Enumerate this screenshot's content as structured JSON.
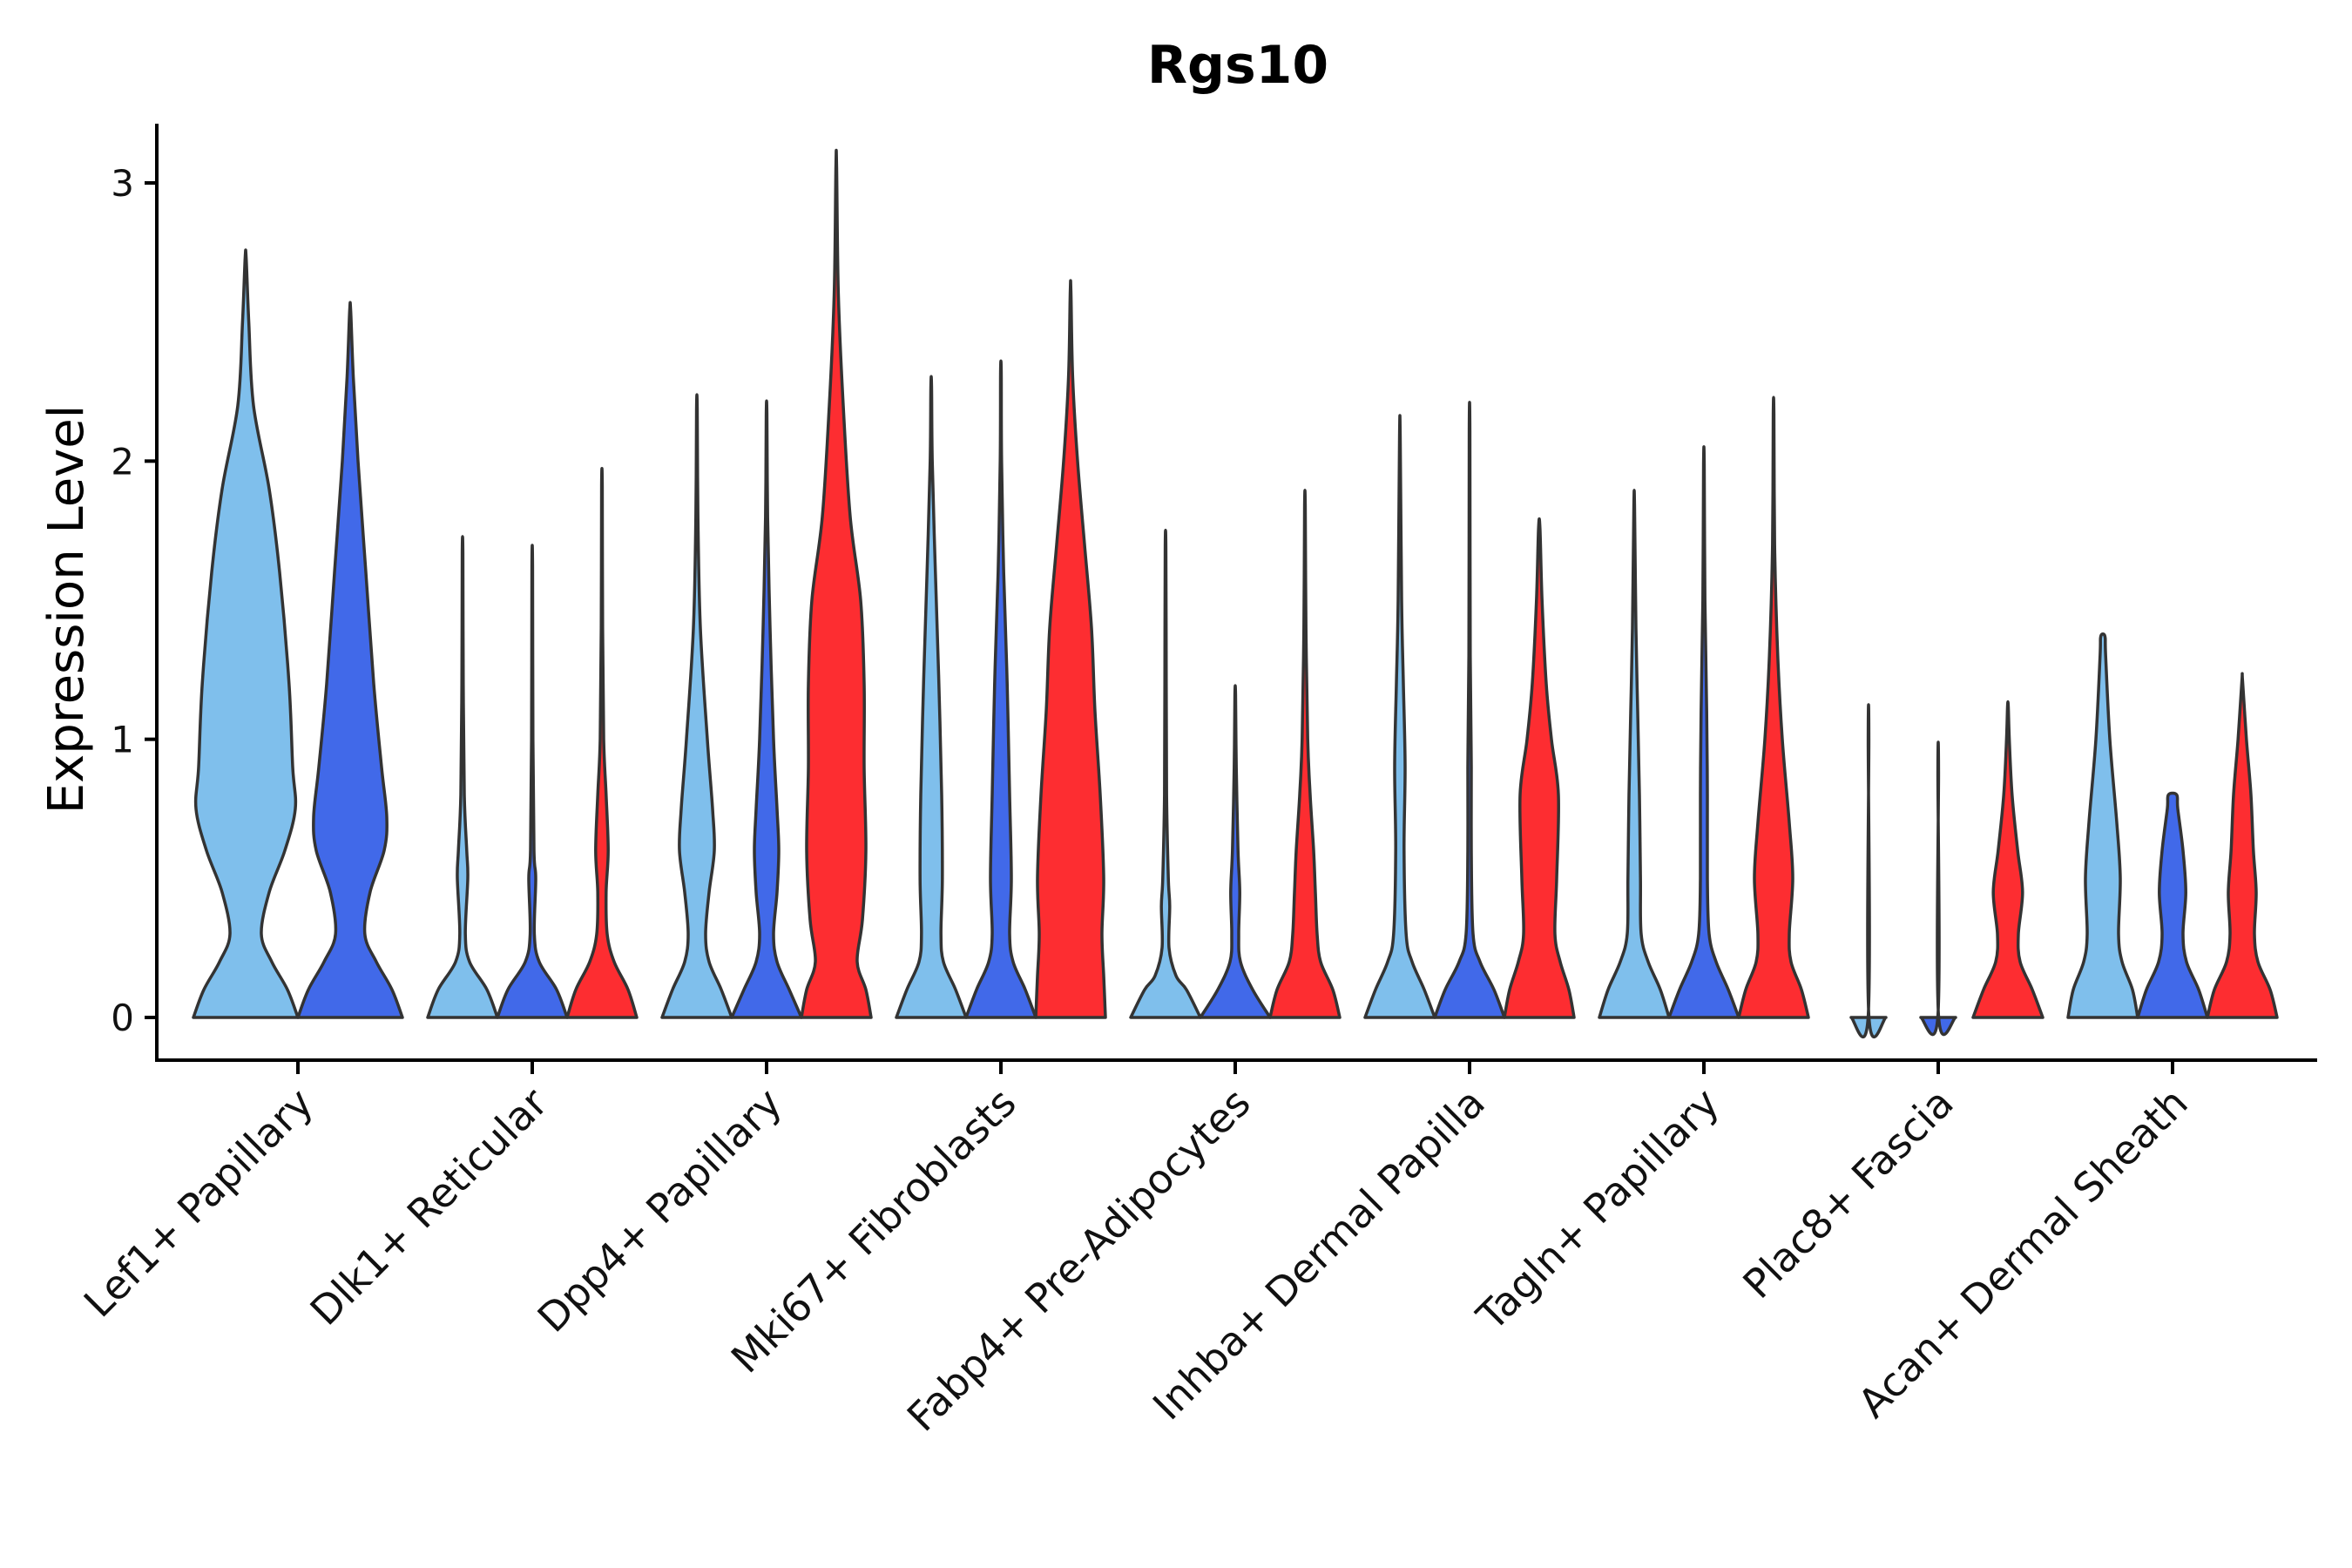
{
  "chart_data": {
    "type": "violin",
    "title": "Rgs10",
    "xlabel": "",
    "ylabel": "Expression Level",
    "ylim": [
      -0.15,
      3.2
    ],
    "yticks": [
      0,
      1,
      2,
      3
    ],
    "grid": false,
    "legend": "none",
    "series_colors": [
      "#7fbfec",
      "#4169e9",
      "#fd2d31"
    ],
    "categories": [
      "Lef1+ Papillary",
      "Dlk1+ Reticular",
      "Dpp4+ Papillary",
      "Mki67+ Fibroblasts",
      "Fabp4+ Pre-Adipocytes",
      "Inhba+ Dermal Papilla",
      "Tagln+ Papillary",
      "Plac8+ Fascia",
      "Acan+ Dermal Sheath"
    ],
    "violins": [
      {
        "category": "Lef1+ Papillary",
        "group": 1,
        "max": 2.73,
        "profile": [
          [
            0,
            1.0
          ],
          [
            0.1,
            0.8
          ],
          [
            0.2,
            0.5
          ],
          [
            0.3,
            0.3
          ],
          [
            0.45,
            0.45
          ],
          [
            0.6,
            0.75
          ],
          [
            0.75,
            0.95
          ],
          [
            0.9,
            0.9
          ],
          [
            1.2,
            0.83
          ],
          [
            1.6,
            0.65
          ],
          [
            1.9,
            0.45
          ],
          [
            2.2,
            0.15
          ],
          [
            2.5,
            0.06
          ],
          [
            2.73,
            0.01
          ]
        ]
      },
      {
        "category": "Lef1+ Papillary",
        "group": 2,
        "max": 2.54,
        "profile": [
          [
            0,
            1.0
          ],
          [
            0.1,
            0.8
          ],
          [
            0.2,
            0.5
          ],
          [
            0.3,
            0.28
          ],
          [
            0.45,
            0.38
          ],
          [
            0.6,
            0.65
          ],
          [
            0.72,
            0.7
          ],
          [
            0.9,
            0.6
          ],
          [
            1.2,
            0.45
          ],
          [
            1.6,
            0.3
          ],
          [
            2.0,
            0.15
          ],
          [
            2.3,
            0.06
          ],
          [
            2.54,
            0.01
          ]
        ]
      },
      {
        "category": "Dlk1+ Reticular",
        "group": 1,
        "max": 1.67,
        "profile": [
          [
            0,
            1.0
          ],
          [
            0.1,
            0.7
          ],
          [
            0.2,
            0.2
          ],
          [
            0.3,
            0.08
          ],
          [
            0.5,
            0.15
          ],
          [
            0.6,
            0.12
          ],
          [
            0.8,
            0.05
          ],
          [
            1.2,
            0.02
          ],
          [
            1.67,
            0.01
          ]
        ]
      },
      {
        "category": "Dlk1+ Reticular",
        "group": 2,
        "max": 1.62,
        "profile": [
          [
            0,
            1.0
          ],
          [
            0.1,
            0.7
          ],
          [
            0.2,
            0.2
          ],
          [
            0.3,
            0.06
          ],
          [
            0.5,
            0.1
          ],
          [
            0.6,
            0.05
          ],
          [
            1.0,
            0.02
          ],
          [
            1.62,
            0.01
          ]
        ]
      },
      {
        "category": "Dlk1+ Reticular",
        "group": 3,
        "max": 1.91,
        "profile": [
          [
            0,
            1.0
          ],
          [
            0.1,
            0.75
          ],
          [
            0.2,
            0.35
          ],
          [
            0.3,
            0.15
          ],
          [
            0.45,
            0.12
          ],
          [
            0.6,
            0.18
          ],
          [
            0.8,
            0.12
          ],
          [
            1.0,
            0.05
          ],
          [
            1.4,
            0.02
          ],
          [
            1.91,
            0.01
          ]
        ]
      },
      {
        "category": "Dpp4+ Papillary",
        "group": 1,
        "max": 2.19,
        "profile": [
          [
            0,
            1.0
          ],
          [
            0.1,
            0.7
          ],
          [
            0.2,
            0.35
          ],
          [
            0.3,
            0.25
          ],
          [
            0.45,
            0.35
          ],
          [
            0.6,
            0.5
          ],
          [
            0.75,
            0.45
          ],
          [
            1.0,
            0.3
          ],
          [
            1.4,
            0.1
          ],
          [
            1.8,
            0.03
          ],
          [
            2.19,
            0.01
          ]
        ]
      },
      {
        "category": "Dpp4+ Papillary",
        "group": 2,
        "max": 2.17,
        "profile": [
          [
            0,
            1.0
          ],
          [
            0.1,
            0.65
          ],
          [
            0.2,
            0.3
          ],
          [
            0.3,
            0.2
          ],
          [
            0.45,
            0.3
          ],
          [
            0.6,
            0.35
          ],
          [
            0.75,
            0.3
          ],
          [
            1.0,
            0.2
          ],
          [
            1.4,
            0.1
          ],
          [
            1.8,
            0.03
          ],
          [
            2.17,
            0.01
          ]
        ]
      },
      {
        "category": "Dpp4+ Papillary",
        "group": 3,
        "max": 3.06,
        "profile": [
          [
            0,
            1.0
          ],
          [
            0.1,
            0.85
          ],
          [
            0.2,
            0.6
          ],
          [
            0.35,
            0.75
          ],
          [
            0.6,
            0.85
          ],
          [
            0.9,
            0.8
          ],
          [
            1.2,
            0.8
          ],
          [
            1.5,
            0.7
          ],
          [
            1.8,
            0.4
          ],
          [
            2.2,
            0.2
          ],
          [
            2.6,
            0.06
          ],
          [
            3.06,
            0.01
          ]
        ]
      },
      {
        "category": "Mki67+ Fibroblasts",
        "group": 1,
        "max": 2.27,
        "profile": [
          [
            0,
            1.0
          ],
          [
            0.1,
            0.7
          ],
          [
            0.2,
            0.35
          ],
          [
            0.3,
            0.28
          ],
          [
            0.5,
            0.32
          ],
          [
            0.8,
            0.3
          ],
          [
            1.2,
            0.22
          ],
          [
            1.6,
            0.12
          ],
          [
            2.0,
            0.03
          ],
          [
            2.27,
            0.01
          ]
        ]
      },
      {
        "category": "Mki67+ Fibroblasts",
        "group": 2,
        "max": 2.32,
        "profile": [
          [
            0,
            1.0
          ],
          [
            0.1,
            0.7
          ],
          [
            0.2,
            0.35
          ],
          [
            0.3,
            0.25
          ],
          [
            0.5,
            0.3
          ],
          [
            0.8,
            0.25
          ],
          [
            1.2,
            0.18
          ],
          [
            1.6,
            0.08
          ],
          [
            2.0,
            0.02
          ],
          [
            2.32,
            0.01
          ]
        ]
      },
      {
        "category": "Mki67+ Fibroblasts",
        "group": 3,
        "max": 2.61,
        "profile": [
          [
            0,
            1.0
          ],
          [
            0.15,
            0.95
          ],
          [
            0.3,
            0.9
          ],
          [
            0.5,
            0.95
          ],
          [
            0.8,
            0.85
          ],
          [
            1.1,
            0.7
          ],
          [
            1.4,
            0.6
          ],
          [
            1.7,
            0.4
          ],
          [
            2.0,
            0.2
          ],
          [
            2.3,
            0.06
          ],
          [
            2.61,
            0.01
          ]
        ]
      },
      {
        "category": "Fabp4+ Pre-Adipocytes",
        "group": 1,
        "max": 1.69,
        "profile": [
          [
            0,
            1.0
          ],
          [
            0.1,
            0.6
          ],
          [
            0.15,
            0.3
          ],
          [
            0.25,
            0.1
          ],
          [
            0.4,
            0.12
          ],
          [
            0.5,
            0.08
          ],
          [
            0.8,
            0.03
          ],
          [
            1.2,
            0.02
          ],
          [
            1.69,
            0.01
          ]
        ]
      },
      {
        "category": "Fabp4+ Pre-Adipocytes",
        "group": 2,
        "max": 1.16,
        "profile": [
          [
            0,
            1.0
          ],
          [
            0.1,
            0.5
          ],
          [
            0.2,
            0.15
          ],
          [
            0.3,
            0.1
          ],
          [
            0.45,
            0.13
          ],
          [
            0.6,
            0.08
          ],
          [
            0.9,
            0.03
          ],
          [
            1.16,
            0.01
          ]
        ]
      },
      {
        "category": "Fabp4+ Pre-Adipocytes",
        "group": 3,
        "max": 1.84,
        "profile": [
          [
            0,
            1.0
          ],
          [
            0.1,
            0.8
          ],
          [
            0.2,
            0.45
          ],
          [
            0.3,
            0.35
          ],
          [
            0.45,
            0.3
          ],
          [
            0.6,
            0.25
          ],
          [
            0.8,
            0.15
          ],
          [
            1.0,
            0.08
          ],
          [
            1.4,
            0.03
          ],
          [
            1.84,
            0.01
          ]
        ]
      },
      {
        "category": "Inhba+ Dermal Papilla",
        "group": 1,
        "max": 2.09,
        "profile": [
          [
            0,
            1.0
          ],
          [
            0.1,
            0.7
          ],
          [
            0.2,
            0.35
          ],
          [
            0.3,
            0.18
          ],
          [
            0.6,
            0.12
          ],
          [
            0.9,
            0.15
          ],
          [
            1.2,
            0.1
          ],
          [
            1.5,
            0.05
          ],
          [
            2.09,
            0.01
          ]
        ]
      },
      {
        "category": "Inhba+ Dermal Papilla",
        "group": 2,
        "max": 2.11,
        "profile": [
          [
            0,
            1.0
          ],
          [
            0.1,
            0.7
          ],
          [
            0.2,
            0.3
          ],
          [
            0.3,
            0.1
          ],
          [
            0.6,
            0.05
          ],
          [
            0.9,
            0.05
          ],
          [
            1.3,
            0.02
          ],
          [
            2.11,
            0.01
          ]
        ]
      },
      {
        "category": "Inhba+ Dermal Papilla",
        "group": 3,
        "max": 1.76,
        "profile": [
          [
            0,
            1.0
          ],
          [
            0.1,
            0.85
          ],
          [
            0.2,
            0.6
          ],
          [
            0.3,
            0.45
          ],
          [
            0.5,
            0.5
          ],
          [
            0.8,
            0.55
          ],
          [
            1.0,
            0.35
          ],
          [
            1.2,
            0.2
          ],
          [
            1.5,
            0.08
          ],
          [
            1.76,
            0.02
          ]
        ]
      },
      {
        "category": "Tagln+ Papillary",
        "group": 1,
        "max": 1.84,
        "profile": [
          [
            0,
            1.0
          ],
          [
            0.1,
            0.75
          ],
          [
            0.2,
            0.4
          ],
          [
            0.3,
            0.2
          ],
          [
            0.5,
            0.18
          ],
          [
            0.8,
            0.15
          ],
          [
            1.1,
            0.1
          ],
          [
            1.4,
            0.05
          ],
          [
            1.84,
            0.01
          ]
        ]
      },
      {
        "category": "Tagln+ Papillary",
        "group": 2,
        "max": 1.99,
        "profile": [
          [
            0,
            1.0
          ],
          [
            0.1,
            0.7
          ],
          [
            0.2,
            0.35
          ],
          [
            0.3,
            0.15
          ],
          [
            0.5,
            0.1
          ],
          [
            0.8,
            0.1
          ],
          [
            1.1,
            0.08
          ],
          [
            1.5,
            0.03
          ],
          [
            1.99,
            0.01
          ]
        ]
      },
      {
        "category": "Tagln+ Papillary",
        "group": 3,
        "max": 2.17,
        "profile": [
          [
            0,
            1.0
          ],
          [
            0.1,
            0.8
          ],
          [
            0.2,
            0.5
          ],
          [
            0.3,
            0.45
          ],
          [
            0.5,
            0.55
          ],
          [
            0.7,
            0.45
          ],
          [
            1.0,
            0.25
          ],
          [
            1.3,
            0.12
          ],
          [
            1.7,
            0.03
          ],
          [
            2.17,
            0.01
          ]
        ]
      },
      {
        "category": "Plac8+ Fascia",
        "group": 1,
        "max": 1.0,
        "profile": [
          [
            0,
            0.5
          ],
          [
            0.005,
            0.01
          ],
          [
            1.0,
            0.01
          ]
        ]
      },
      {
        "category": "Plac8+ Fascia",
        "group": 2,
        "max": 0.88,
        "profile": [
          [
            0,
            0.5
          ],
          [
            0.005,
            0.01
          ],
          [
            0.88,
            0.01
          ]
        ]
      },
      {
        "category": "Plac8+ Fascia",
        "group": 3,
        "max": 1.12,
        "profile": [
          [
            0,
            1.0
          ],
          [
            0.1,
            0.7
          ],
          [
            0.2,
            0.35
          ],
          [
            0.3,
            0.3
          ],
          [
            0.45,
            0.42
          ],
          [
            0.6,
            0.28
          ],
          [
            0.8,
            0.12
          ],
          [
            1.0,
            0.04
          ],
          [
            1.12,
            0.01
          ]
        ]
      },
      {
        "category": "Acan+ Dermal Sheath",
        "group": 1,
        "max": 1.37,
        "profile": [
          [
            0,
            1.0
          ],
          [
            0.1,
            0.85
          ],
          [
            0.2,
            0.55
          ],
          [
            0.3,
            0.45
          ],
          [
            0.5,
            0.5
          ],
          [
            0.7,
            0.4
          ],
          [
            1.0,
            0.2
          ],
          [
            1.3,
            0.08
          ],
          [
            1.37,
            0.06
          ]
        ]
      },
      {
        "category": "Acan+ Dermal Sheath",
        "group": 2,
        "max": 0.8,
        "profile": [
          [
            0,
            1.0
          ],
          [
            0.1,
            0.75
          ],
          [
            0.2,
            0.4
          ],
          [
            0.3,
            0.3
          ],
          [
            0.45,
            0.38
          ],
          [
            0.6,
            0.3
          ],
          [
            0.75,
            0.15
          ],
          [
            0.8,
            0.12
          ]
        ]
      },
      {
        "category": "Acan+ Dermal Sheath",
        "group": 3,
        "max": 1.21,
        "profile": [
          [
            0,
            1.0
          ],
          [
            0.1,
            0.8
          ],
          [
            0.2,
            0.45
          ],
          [
            0.3,
            0.35
          ],
          [
            0.45,
            0.4
          ],
          [
            0.6,
            0.32
          ],
          [
            0.8,
            0.25
          ],
          [
            1.0,
            0.12
          ],
          [
            1.21,
            0.01
          ]
        ]
      }
    ]
  }
}
